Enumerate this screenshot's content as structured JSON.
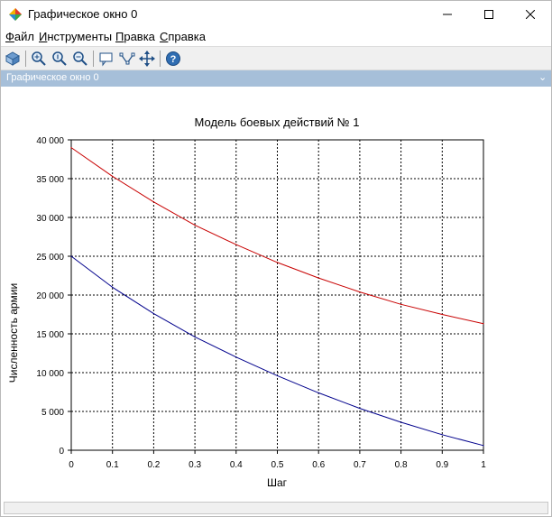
{
  "window": {
    "title": "Графическое окно 0",
    "icon": "scilab-icon"
  },
  "titlebar_buttons": [
    "minimize-icon",
    "maximize-icon",
    "close-icon"
  ],
  "menu": {
    "file": {
      "accel": "Ф",
      "rest": "айл"
    },
    "tools": {
      "accel": "И",
      "rest": "нструменты"
    },
    "edit": {
      "accel": "П",
      "rest": "равка"
    },
    "help": {
      "accel": "С",
      "rest": "правка"
    }
  },
  "toolbar": {
    "tools": [
      "rotate-icon",
      "zoom-in-icon",
      "zoom-original-icon",
      "zoom-out-icon",
      "datatip-icon",
      "edit-curve-icon",
      "pan-icon",
      "help-icon"
    ]
  },
  "header": {
    "title": "Графическое окно 0",
    "menu_glyph": "⌄"
  },
  "colors": {
    "series_red": "#c80000",
    "series_blue": "#00008c",
    "header": "#a6bfd9"
  },
  "chart_data": {
    "type": "line",
    "title": "Модель боевых действий № 1",
    "xlabel": "Шаг",
    "ylabel": "Численность армии",
    "xlim": [
      0,
      1
    ],
    "ylim": [
      0,
      40000
    ],
    "xticks": [
      "0",
      "0.1",
      "0.2",
      "0.3",
      "0.4",
      "0.5",
      "0.6",
      "0.7",
      "0.8",
      "0.9",
      "1"
    ],
    "yticks": [
      "0",
      "5 000",
      "10 000",
      "15 000",
      "20 000",
      "25 000",
      "30 000",
      "35 000",
      "40 000"
    ],
    "grid": true,
    "series": [
      {
        "color": "#c80000",
        "x": [
          0,
          0.1,
          0.2,
          0.3,
          0.4,
          0.5,
          0.6,
          0.7,
          0.8,
          0.9,
          1
        ],
        "y": [
          39000,
          35300,
          32000,
          29000,
          26500,
          24200,
          22200,
          20400,
          18800,
          17500,
          16300
        ]
      },
      {
        "color": "#00008c",
        "x": [
          0,
          0.1,
          0.2,
          0.3,
          0.4,
          0.5,
          0.6,
          0.7,
          0.8,
          0.9,
          1
        ],
        "y": [
          25000,
          21000,
          17600,
          14600,
          12000,
          9600,
          7400,
          5400,
          3600,
          2000,
          600
        ]
      }
    ]
  }
}
